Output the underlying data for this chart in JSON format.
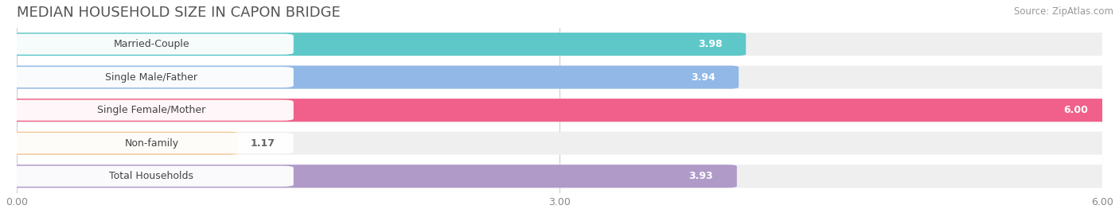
{
  "title": "MEDIAN HOUSEHOLD SIZE IN CAPON BRIDGE",
  "source": "Source: ZipAtlas.com",
  "categories": [
    "Married-Couple",
    "Single Male/Father",
    "Single Female/Mother",
    "Non-family",
    "Total Households"
  ],
  "values": [
    3.98,
    3.94,
    6.0,
    1.17,
    3.93
  ],
  "bar_colors": [
    "#5EC8C8",
    "#92B8E8",
    "#F0608A",
    "#F5C89A",
    "#B09AC8"
  ],
  "value_label_colors": [
    "white",
    "white",
    "white",
    "#666666",
    "white"
  ],
  "xlim": [
    0,
    6.0
  ],
  "xticks": [
    0.0,
    3.0,
    6.0
  ],
  "xtick_labels": [
    "0.00",
    "3.00",
    "6.00"
  ],
  "background_color": "#ffffff",
  "bar_bg_color": "#efefef",
  "title_fontsize": 13,
  "label_fontsize": 9,
  "value_fontsize": 9,
  "source_fontsize": 8.5
}
